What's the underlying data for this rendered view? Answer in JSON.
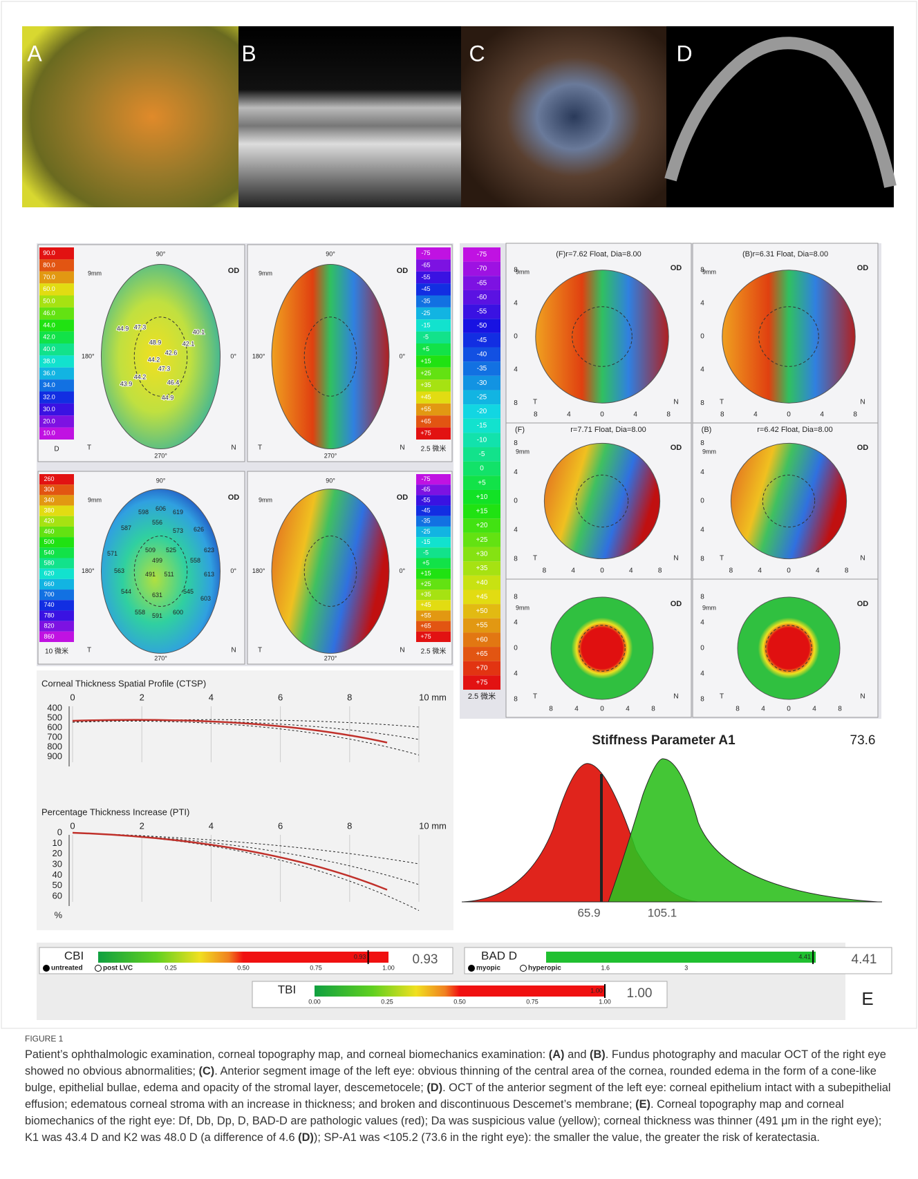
{
  "panels": [
    "A",
    "B",
    "C",
    "D"
  ],
  "topography": {
    "eye": "OD",
    "size": "9mm",
    "temporal": "T",
    "nasal": "N",
    "degrees": [
      "90°",
      "270°",
      "0°",
      "180°"
    ],
    "axis_ticks": [
      "8",
      "4",
      "0",
      "4",
      "8"
    ],
    "scale_keratometry": [
      "90.0",
      "80.0",
      "70.0",
      "60.0",
      "50.0",
      "46.0",
      "44.0",
      "42.0",
      "40.0",
      "38.0",
      "36.0",
      "34.0",
      "32.0",
      "30.0",
      "20.0",
      "10.0"
    ],
    "unit_keratometry": "D",
    "scale_elevation": [
      "-75",
      "-65",
      "-55",
      "-45",
      "-35",
      "-25",
      "-15",
      "-5",
      "+5",
      "+15",
      "+25",
      "+35",
      "+45",
      "+55",
      "+65",
      "+75"
    ],
    "unit_elevation": "2.5 微米",
    "scale_pachymetry": [
      "260",
      "300",
      "340",
      "380",
      "420",
      "460",
      "500",
      "540",
      "580",
      "620",
      "660",
      "700",
      "740",
      "780",
      "820",
      "860"
    ],
    "unit_pachymetry": "10 微米",
    "keratometry_values": [
      "44.9",
      "47.3",
      "48.9",
      "40.1",
      "42.1",
      "42.6",
      "44.2",
      "47.3",
      "44.2",
      "43.9",
      "46.4",
      "44.9"
    ],
    "pachymetry_values": [
      "598",
      "606",
      "619",
      "587",
      "556",
      "573",
      "626",
      "571",
      "509",
      "525",
      "499",
      "558",
      "623",
      "563",
      "491",
      "511",
      "613",
      "544",
      "631",
      "545",
      "603",
      "558",
      "591",
      "600"
    ],
    "scale_difference": [
      "-75",
      "-70",
      "-65",
      "-60",
      "-55",
      "-50",
      "-45",
      "-40",
      "-35",
      "-30",
      "-25",
      "-20",
      "-15",
      "-10",
      "-5",
      "0",
      "+5",
      "+10",
      "+15",
      "+20",
      "+25",
      "+30",
      "+35",
      "+40",
      "+45",
      "+50",
      "+55",
      "+60",
      "+65",
      "+70",
      "+75"
    ],
    "unit_difference": "2.5 微米",
    "map_headers": [
      "(F)r=7.62 Float, Dia=8.00",
      "(B)r=6.31 Float, Dia=8.00",
      "(F)",
      "r=7.71 Float, Dia=8.00",
      "(B)",
      "r=6.42 Float, Dia=8.00"
    ]
  },
  "ctsp": {
    "title": "Corneal Thickness Spatial Profile (CTSP)",
    "xticks": [
      "0",
      "2",
      "4",
      "6",
      "8",
      "10 mm"
    ],
    "yticks": [
      "400",
      "500",
      "600",
      "700",
      "800",
      "900"
    ]
  },
  "pti": {
    "title": "Percentage Thickness Increase (PTI)",
    "xticks": [
      "0",
      "2",
      "4",
      "6",
      "8",
      "10 mm"
    ],
    "yticks": [
      "0",
      "10",
      "20",
      "30",
      "40",
      "50",
      "60"
    ],
    "unit": "%"
  },
  "stiffness": {
    "title": "Stiffness Parameter A1",
    "value": "73.6",
    "marks": [
      "65.9",
      "105.1"
    ]
  },
  "indices": {
    "cbi": {
      "name": "CBI",
      "options": [
        "untreated",
        "post LVC"
      ],
      "ticks": [
        "0.25",
        "0.50",
        "0.75",
        "1.00"
      ],
      "marker": "0.93",
      "value": "0.93"
    },
    "bad_d": {
      "name": "BAD D",
      "options": [
        "myopic",
        "hyperopic"
      ],
      "ticks": [
        "1.6",
        "3"
      ],
      "marker": "4.41",
      "value": "4.41"
    },
    "tbi": {
      "name": "TBI",
      "ticks": [
        "0.00",
        "0.25",
        "0.50",
        "0.75",
        "1.00"
      ],
      "marker": "1.00",
      "value": "1.00"
    },
    "label": "E"
  },
  "caption": {
    "label": "FIGURE 1",
    "segments": [
      {
        "text": "Patient’s ophthalmologic examination, corneal topography map, and corneal biomechanics examination: "
      },
      {
        "text": "(A)",
        "bold": true
      },
      {
        "text": " and "
      },
      {
        "text": "(B)",
        "bold": true
      },
      {
        "text": ". Fundus photography and macular OCT of the right eye showed no obvious abnormalities; "
      },
      {
        "text": "(C)",
        "bold": true
      },
      {
        "text": ". Anterior segment image of the left eye: obvious thinning of the central area of the cornea, rounded edema in the form of a cone-like bulge, epithelial bullae, edema and opacity of the stromal layer, descemetocele; "
      },
      {
        "text": "(D)",
        "bold": true
      },
      {
        "text": ". OCT of the anterior segment of the left eye: corneal epithelium intact with a subepithelial effusion; edematous corneal stroma with an increase in thickness; and broken and discontinuous Descemet’s membrane; "
      },
      {
        "text": "(E)",
        "bold": true
      },
      {
        "text": ". Corneal topography map and corneal biomechanics of the right eye: Df, Db, Dp, D, BAD-D are pathologic values (red); Da was suspicious value (yellow); corneal thickness was thinner (491 μm in the right eye); K1 was 43.4 D and K2 was 48.0 D (a difference of 4.6 "
      },
      {
        "text": "(D)",
        "bold": true
      },
      {
        "text": "); SP-A1 was <105.2 (73.6 in the right eye): the smaller the value, the greater the risk of keratectasia."
      }
    ]
  }
}
